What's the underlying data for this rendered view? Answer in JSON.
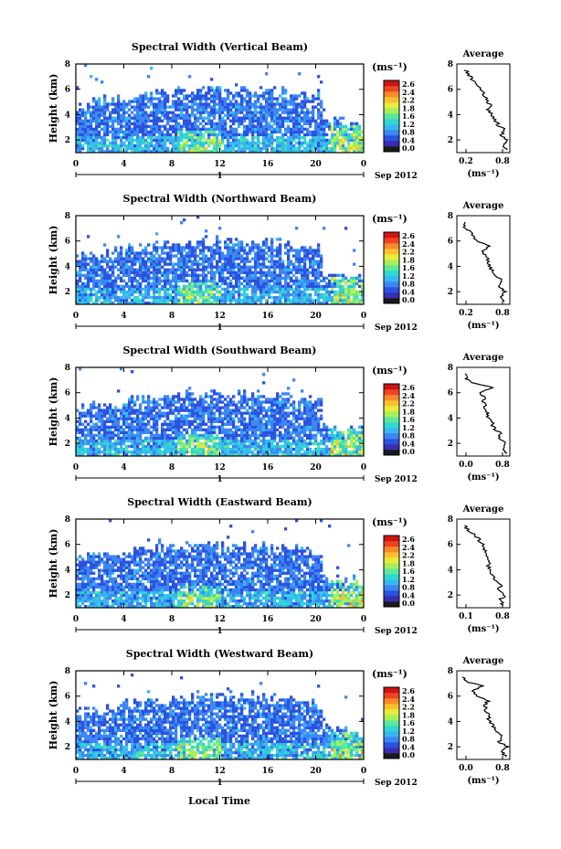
{
  "colorbar": {
    "unit_label": "(ms⁻¹)",
    "ticks": [
      "2.6",
      "2.4",
      "2.2",
      "1.8",
      "1.6",
      "1.2",
      "0.8",
      "0.4",
      "0.0"
    ],
    "colors": [
      "#1a1a1a",
      "#3b2db0",
      "#2c52e0",
      "#3c87f2",
      "#38b8f0",
      "#2ed8d0",
      "#5de89a",
      "#a8ef5a",
      "#e8ec3c",
      "#f8c030",
      "#f88a28",
      "#ee4424",
      "#cc1414"
    ]
  },
  "x_axis": {
    "ticks": [
      "0",
      "4",
      "8",
      "12",
      "16",
      "20",
      "0"
    ],
    "day_label": "1",
    "date_label": "Sep 2012",
    "xlabel": "Local Time"
  },
  "chart_data": [
    {
      "type": "heatmap",
      "title": "Spectral Width (Vertical Beam)",
      "ylabel": "Height (km)",
      "yticks": [
        "8",
        "6",
        "4",
        "2"
      ],
      "xlim": [
        0,
        24
      ],
      "ylim": [
        1,
        8
      ],
      "colorbar_range": [
        0.0,
        2.6
      ],
      "profile": {
        "type": "line",
        "title": "Average",
        "xlabel": "(ms⁻¹)",
        "xticks": [
          "0.2",
          "0.8"
        ],
        "xlim": [
          0.0,
          1.0
        ],
        "yticks": [
          "8",
          "6",
          "4",
          "2"
        ],
        "height_km": [
          1.2,
          1.6,
          2.0,
          2.4,
          2.8,
          3.2,
          3.6,
          4.0,
          4.4,
          4.8,
          5.2,
          5.6,
          6.0,
          6.4,
          6.8,
          7.2,
          7.6
        ],
        "width": [
          0.95,
          0.88,
          0.93,
          0.85,
          0.9,
          0.78,
          0.72,
          0.66,
          0.6,
          0.62,
          0.55,
          0.52,
          0.46,
          0.4,
          0.3,
          0.22,
          0.15
        ]
      }
    },
    {
      "type": "heatmap",
      "title": "Spectral Width (Northward Beam)",
      "ylabel": "Height (km)",
      "yticks": [
        "8",
        "6",
        "4",
        "2"
      ],
      "xlim": [
        0,
        24
      ],
      "ylim": [
        1,
        8
      ],
      "colorbar_range": [
        0.0,
        2.6
      ],
      "profile": {
        "type": "line",
        "title": "Average",
        "xlabel": "(ms⁻¹)",
        "xticks": [
          "0.2",
          "0.8"
        ],
        "xlim": [
          0.0,
          1.0
        ],
        "yticks": [
          "8",
          "6",
          "4",
          "2"
        ],
        "height_km": [
          1.2,
          1.6,
          2.0,
          2.4,
          2.8,
          3.2,
          3.6,
          4.0,
          4.4,
          4.8,
          5.2,
          5.6,
          6.0,
          6.4,
          6.8,
          7.2,
          7.6
        ],
        "width": [
          0.9,
          0.84,
          0.92,
          0.8,
          0.88,
          0.74,
          0.68,
          0.6,
          0.58,
          0.55,
          0.5,
          0.6,
          0.38,
          0.3,
          0.22,
          0.14,
          0.1
        ]
      }
    },
    {
      "type": "heatmap",
      "title": "Spectral Width (Southward Beam)",
      "ylabel": "Height (km)",
      "yticks": [
        "8",
        "6",
        "4",
        "2"
      ],
      "xlim": [
        0,
        24
      ],
      "ylim": [
        1,
        8
      ],
      "colorbar_range": [
        0.0,
        2.6
      ],
      "profile": {
        "type": "line",
        "title": "Average",
        "xlabel": "(ms⁻¹)",
        "xticks": [
          "0.0",
          "0.8"
        ],
        "xlim": [
          0.0,
          1.0
        ],
        "yticks": [
          "8",
          "6",
          "4",
          "2"
        ],
        "height_km": [
          1.2,
          1.6,
          2.0,
          2.4,
          2.8,
          3.2,
          3.6,
          4.0,
          4.4,
          4.8,
          5.2,
          5.6,
          6.0,
          6.4,
          6.8,
          7.2,
          7.6
        ],
        "width": [
          0.95,
          0.85,
          0.92,
          0.78,
          0.82,
          0.7,
          0.66,
          0.6,
          0.58,
          0.55,
          0.5,
          0.54,
          0.42,
          0.7,
          0.25,
          0.18,
          0.12
        ]
      }
    },
    {
      "type": "heatmap",
      "title": "Spectral Width (Eastward Beam)",
      "ylabel": "Height (km)",
      "yticks": [
        "8",
        "6",
        "4",
        "2"
      ],
      "xlim": [
        0,
        24
      ],
      "ylim": [
        1,
        8
      ],
      "colorbar_range": [
        0.0,
        2.6
      ],
      "profile": {
        "type": "line",
        "title": "Average",
        "xlabel": "(ms⁻¹)",
        "xticks": [
          "0.1",
          "0.8"
        ],
        "xlim": [
          0.0,
          1.0
        ],
        "yticks": [
          "8",
          "6",
          "4",
          "2"
        ],
        "height_km": [
          1.2,
          1.6,
          2.0,
          2.4,
          2.8,
          3.2,
          3.6,
          4.0,
          4.4,
          4.8,
          5.2,
          5.6,
          6.0,
          6.4,
          6.8,
          7.2,
          7.6
        ],
        "width": [
          0.88,
          0.82,
          0.9,
          0.76,
          0.84,
          0.72,
          0.66,
          0.62,
          0.6,
          0.58,
          0.55,
          0.52,
          0.48,
          0.42,
          0.32,
          0.2,
          0.12
        ]
      }
    },
    {
      "type": "heatmap",
      "title": "Spectral Width (Westward Beam)",
      "ylabel": "Height (km)",
      "yticks": [
        "8",
        "6",
        "4",
        "2"
      ],
      "xlim": [
        0,
        24
      ],
      "ylim": [
        1,
        8
      ],
      "colorbar_range": [
        0.0,
        2.6
      ],
      "profile": {
        "type": "line",
        "title": "Average",
        "xlabel": "(ms⁻¹)",
        "xticks": [
          "0.0",
          "0.8"
        ],
        "xlim": [
          0.0,
          1.0
        ],
        "yticks": [
          "8",
          "6",
          "4",
          "2"
        ],
        "height_km": [
          1.2,
          1.6,
          2.0,
          2.4,
          2.8,
          3.2,
          3.6,
          4.0,
          4.4,
          4.8,
          5.2,
          5.6,
          6.0,
          6.4,
          6.8,
          7.2,
          7.6
        ],
        "width": [
          0.92,
          0.86,
          0.94,
          0.8,
          0.86,
          0.72,
          0.68,
          0.62,
          0.6,
          0.56,
          0.52,
          0.58,
          0.4,
          0.3,
          0.48,
          0.15,
          0.1
        ]
      }
    }
  ]
}
